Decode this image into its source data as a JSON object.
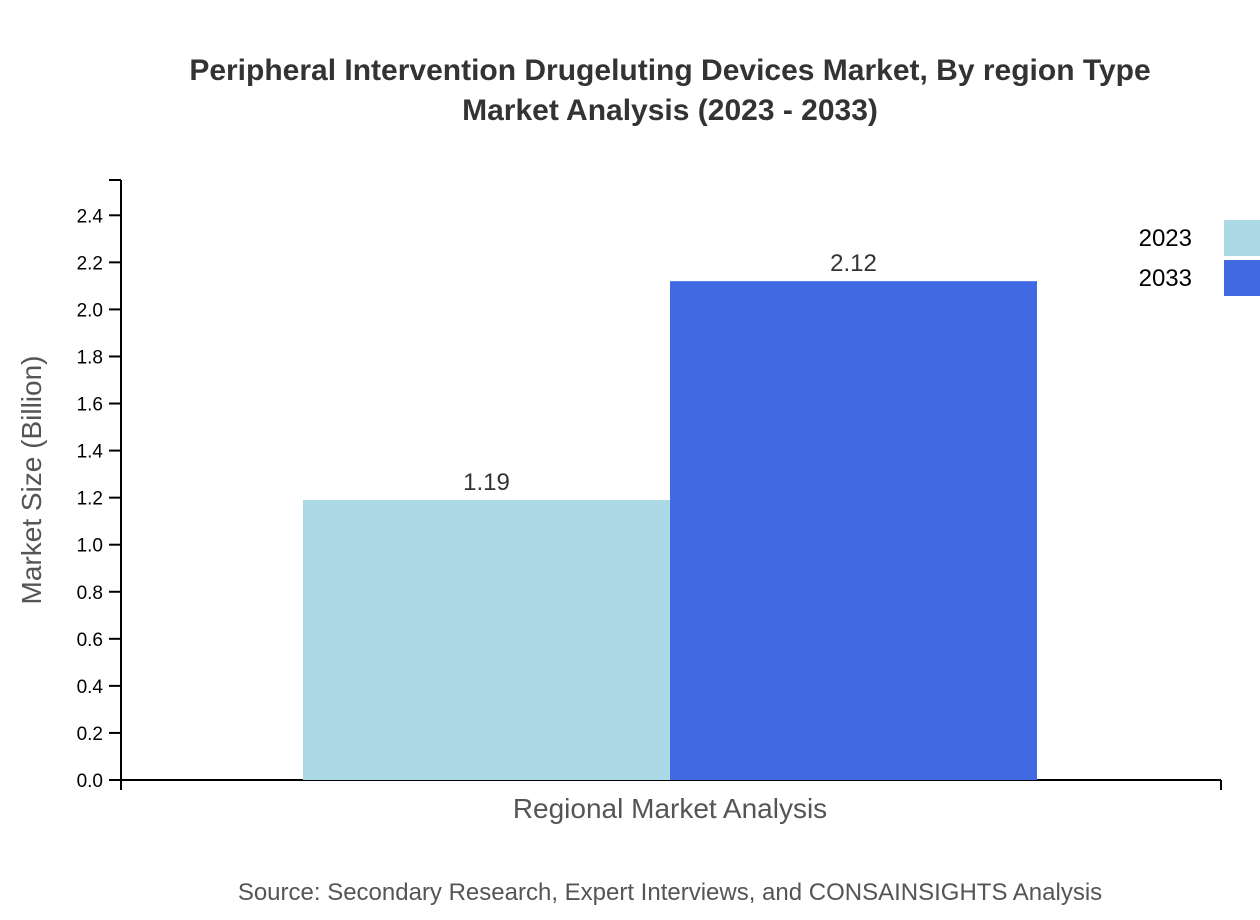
{
  "chart_data": {
    "type": "bar",
    "title": "Peripheral Intervention Drugeluting Devices Market, By region Type",
    "subtitle": "Market Analysis (2023 - 2033)",
    "xlabel": "Regional Market Analysis",
    "ylabel": "Market Size (Billion)",
    "ylim": [
      0,
      2.55
    ],
    "yticks": [
      "0.0",
      "0.2",
      "0.4",
      "0.6",
      "0.8",
      "1.0",
      "1.2",
      "1.4",
      "1.6",
      "1.8",
      "2.0",
      "2.2",
      "2.4"
    ],
    "categories": [
      ""
    ],
    "series": [
      {
        "name": "2023",
        "values": [
          1.19
        ],
        "color": "#add8e6",
        "label": "1.19"
      },
      {
        "name": "2033",
        "values": [
          2.12
        ],
        "color": "#4169e1",
        "label": "2.12"
      }
    ],
    "legend": "top-right",
    "grid": false,
    "source": "Source: Secondary Research, Expert Interviews, and CONSAINSIGHTS Analysis"
  }
}
